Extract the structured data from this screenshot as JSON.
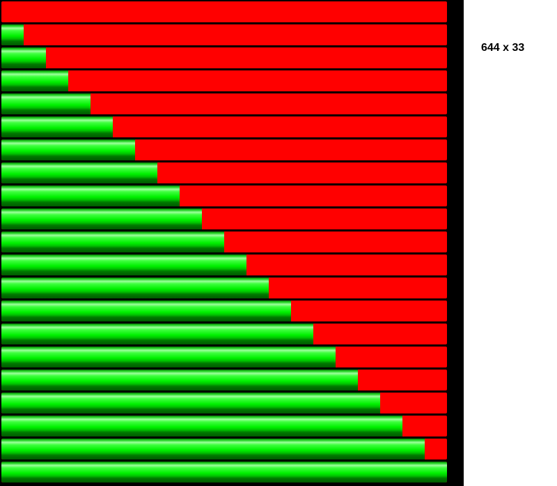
{
  "size_label": "644 x 33",
  "colors": {
    "background": "#000000",
    "empty": "#ff0000",
    "fill": "#00f000"
  },
  "bars": [
    {
      "fill": 0.0
    },
    {
      "fill": 0.05
    },
    {
      "fill": 0.1
    },
    {
      "fill": 0.15
    },
    {
      "fill": 0.2
    },
    {
      "fill": 0.25
    },
    {
      "fill": 0.3
    },
    {
      "fill": 0.35
    },
    {
      "fill": 0.4
    },
    {
      "fill": 0.45
    },
    {
      "fill": 0.5
    },
    {
      "fill": 0.55
    },
    {
      "fill": 0.6
    },
    {
      "fill": 0.65
    },
    {
      "fill": 0.7
    },
    {
      "fill": 0.75
    },
    {
      "fill": 0.8
    },
    {
      "fill": 0.85
    },
    {
      "fill": 0.9
    },
    {
      "fill": 0.95
    },
    {
      "fill": 1.0
    }
  ]
}
